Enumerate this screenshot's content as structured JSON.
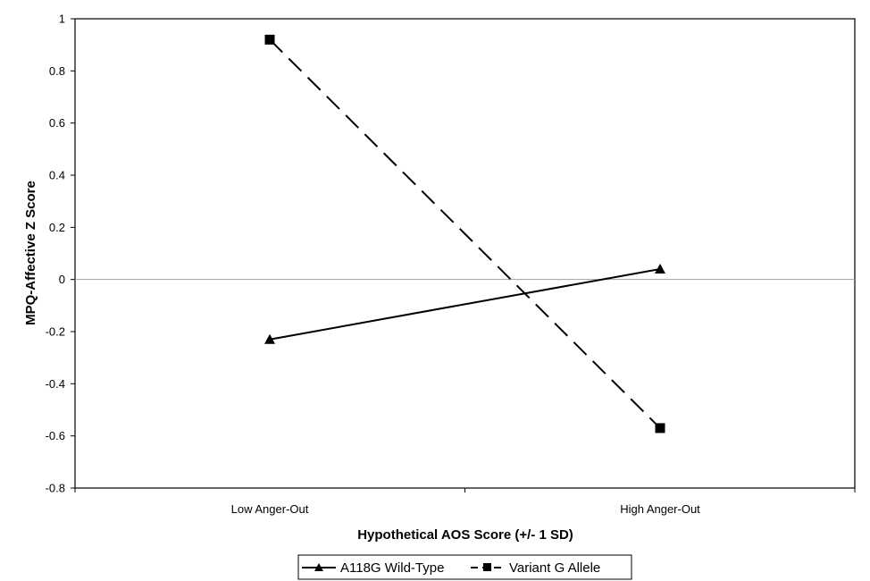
{
  "chart_data": {
    "type": "line",
    "categories": [
      "Low Anger-Out",
      "High Anger-Out"
    ],
    "series": [
      {
        "name": "A118G Wild-Type",
        "values": [
          -0.23,
          0.04
        ],
        "marker": "triangle",
        "dash": "solid",
        "color": "#000000"
      },
      {
        "name": "Variant G Allele",
        "values": [
          0.92,
          -0.57
        ],
        "marker": "square",
        "dash": "dashed",
        "color": "#000000"
      }
    ],
    "xlabel": "Hypothetical AOS Score (+/- 1 SD)",
    "ylabel": "MPQ-Affective Z Score",
    "ylim": [
      -0.8,
      1
    ],
    "yticks": [
      1,
      0.8,
      0.6,
      0.4,
      0.2,
      0,
      -0.2,
      -0.4,
      -0.6,
      -0.8
    ],
    "ytick_labels": [
      "1",
      "0.8",
      "0.6",
      "0.4",
      "0.2",
      "0",
      "-0.2",
      "-0.4",
      "-0.6",
      "-0.8"
    ],
    "zero_line": true,
    "grid": false,
    "legend_position": "bottom"
  }
}
